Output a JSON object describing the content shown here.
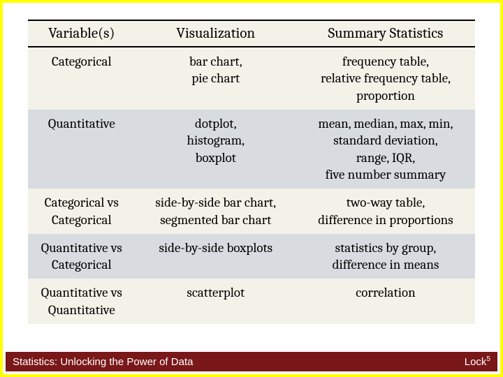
{
  "table": {
    "columns": [
      "Variable(s)",
      "Visualization",
      "Summary Statistics"
    ],
    "col_widths_pct": [
      24,
      36,
      40
    ],
    "header_bg": "#f2f2e8",
    "header_border_color": "#000000",
    "header_fontsize": 21,
    "cell_fontsize": 19,
    "band_colors": [
      "#f2f2e8",
      "#d8dbe0"
    ],
    "rows": [
      {
        "variable": "Categorical",
        "visualization": "bar chart,\npie chart",
        "summary": "frequency table,\nrelative frequency table,\nproportion"
      },
      {
        "variable": "Quantitative",
        "visualization": "dotplot,\nhistogram,\nboxplot",
        "summary": "mean, median, max, min,\nstandard deviation,\nrange, IQR,\nfive number summary"
      },
      {
        "variable": "Categorical vs\nCategorical",
        "visualization": "side-by-side bar chart,\nsegmented bar chart",
        "summary": "two-way table,\ndifference in proportions"
      },
      {
        "variable": "Quantitative vs\nCategorical",
        "visualization": "side-by-side boxplots",
        "summary": "statistics by group,\ndifference in means"
      },
      {
        "variable": "Quantitative vs\nQuantitative",
        "visualization": "scatterplot",
        "summary": "correlation"
      }
    ]
  },
  "footer": {
    "left": "Statistics: Unlocking the Power of Data",
    "right_base": "Lock",
    "right_sup": "5",
    "background_color": "#7a1719",
    "text_color": "#ffffff",
    "fontsize": 15
  },
  "frame": {
    "border_color": "#ffff00",
    "border_width": 4
  }
}
